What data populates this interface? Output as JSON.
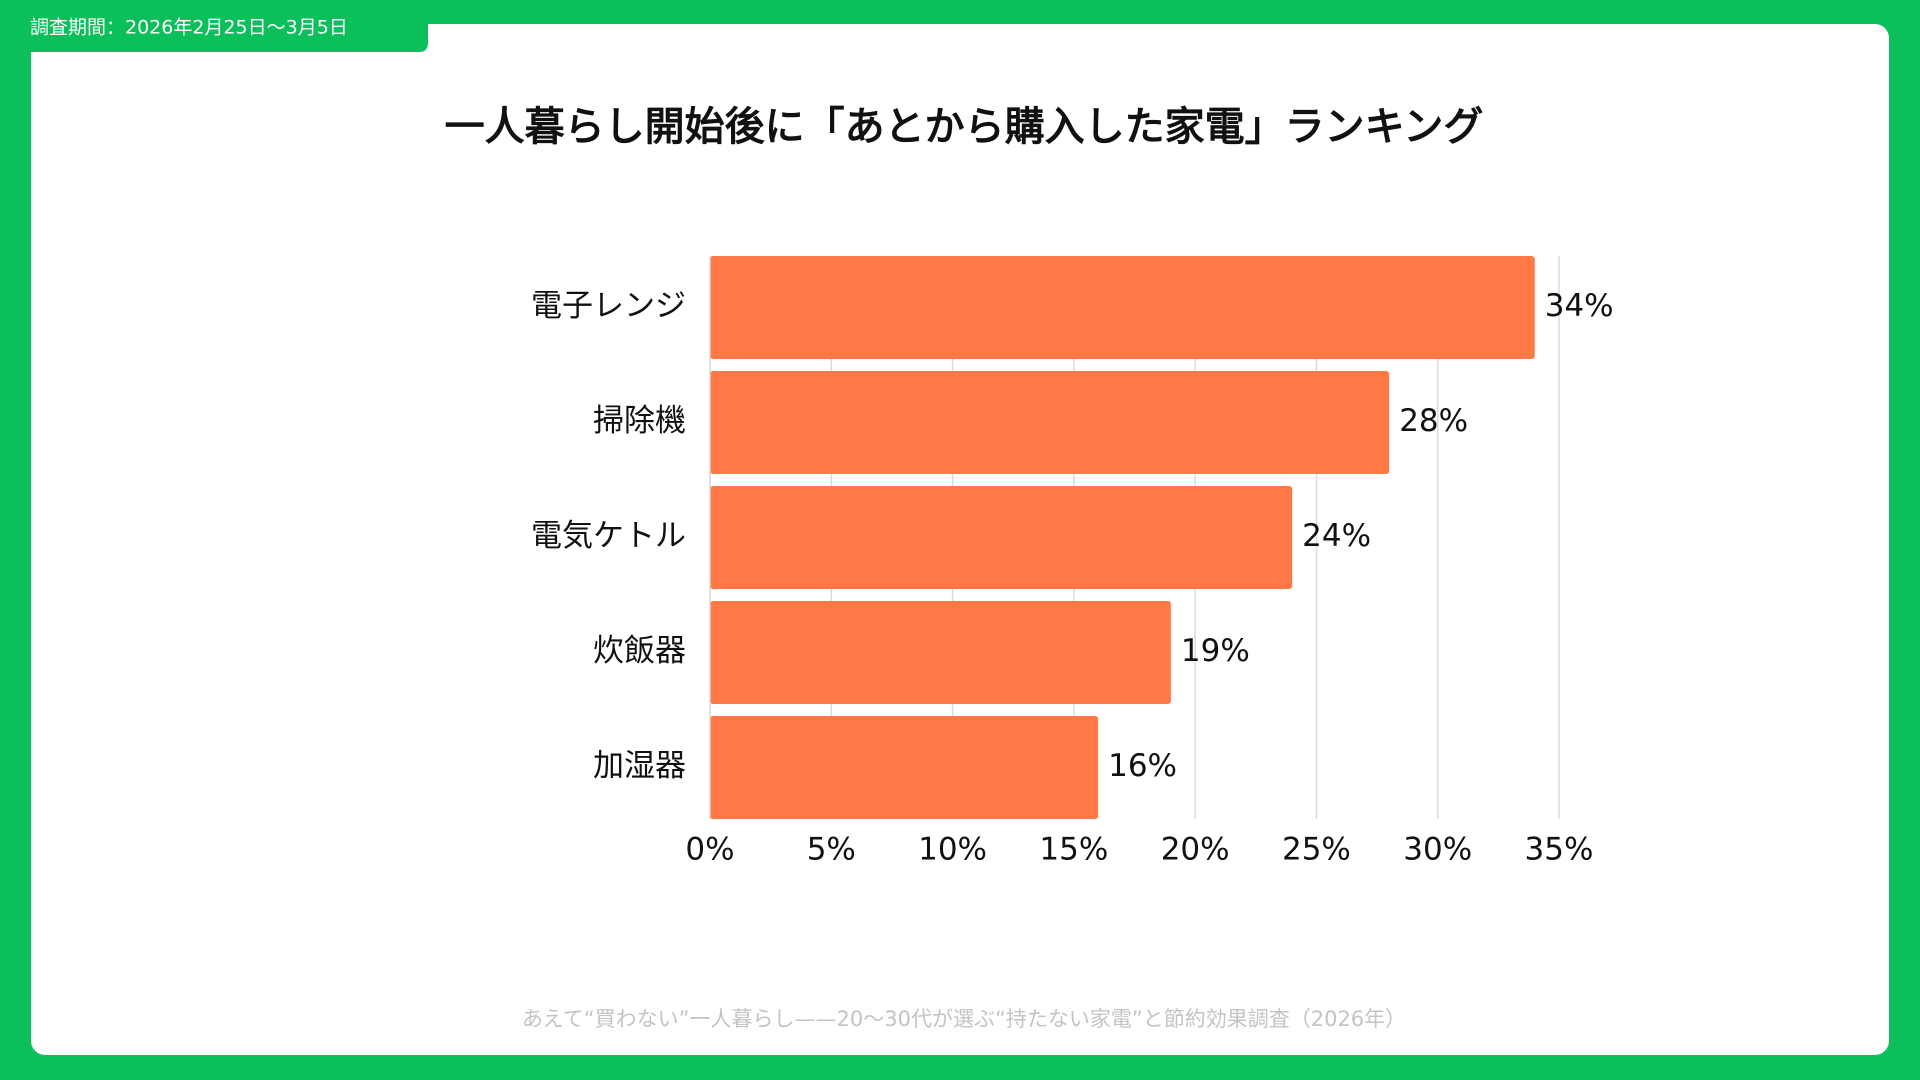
{
  "chart_data": {
    "type": "hbar",
    "period": "調査期間：2026年2月25日〜3月5日",
    "title": "一人暮らし開始後に「あとから購入した家電」ランキング",
    "categories": [
      "電子レンジ",
      "掃除機",
      "電気ケトル",
      "炊飯器",
      "加湿器"
    ],
    "values": [
      34,
      28,
      24,
      19,
      16
    ],
    "value_labels": [
      "34%",
      "28%",
      "24%",
      "19%",
      "16%"
    ],
    "color": "#ff7846",
    "xlim": [
      0,
      35
    ],
    "xticks": [
      {
        "value": 0,
        "label": "0%"
      },
      {
        "value": 5,
        "label": "5%"
      },
      {
        "value": 10,
        "label": "10%"
      },
      {
        "value": 15,
        "label": "15%"
      },
      {
        "value": 20,
        "label": "20%"
      },
      {
        "value": 25,
        "label": "25%"
      },
      {
        "value": 30,
        "label": "30%"
      },
      {
        "value": 35,
        "label": "35%"
      }
    ],
    "grid": true,
    "source": "あえて“買わない”一人暮らし——20〜30代が選ぶ“持たない家電”と節約効果調査（2026年）"
  }
}
